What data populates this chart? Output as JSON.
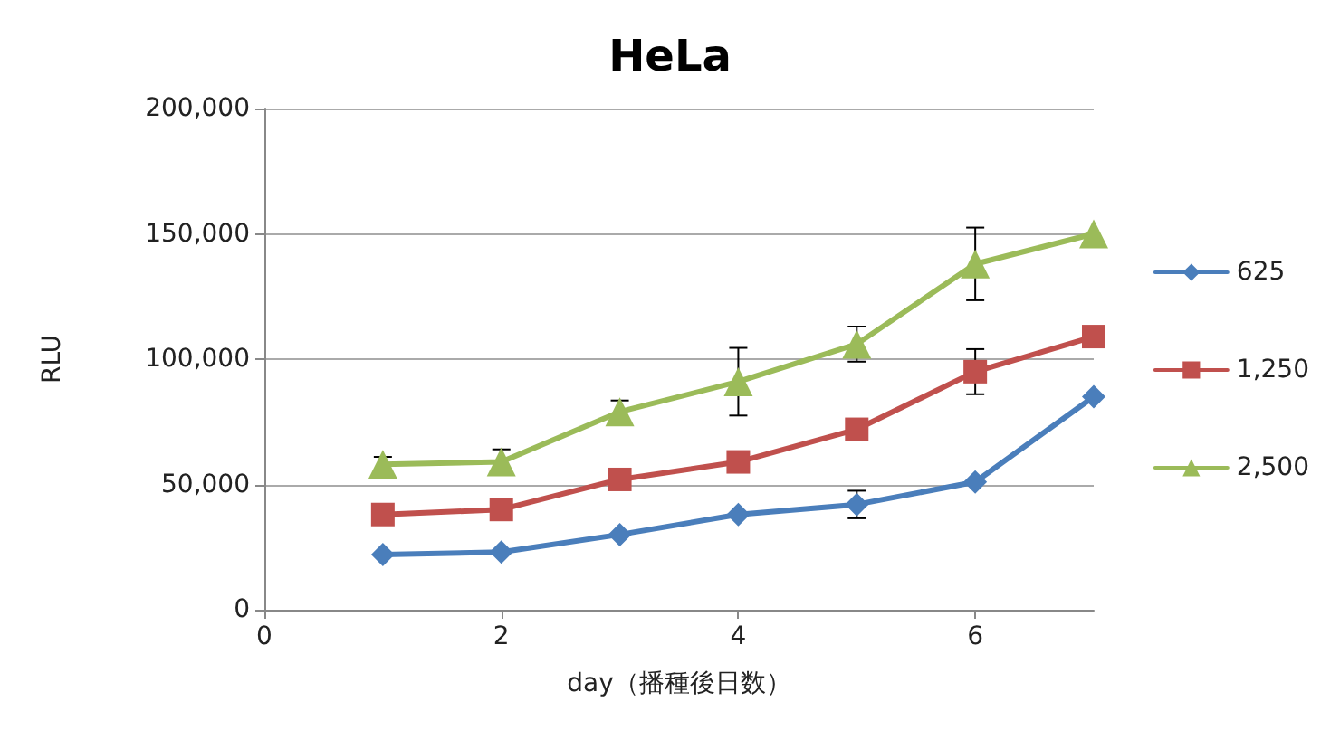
{
  "chart_data": {
    "type": "line",
    "title": "HeLa",
    "xlabel": "day（播種後日数）",
    "ylabel": "RLU",
    "x": [
      1,
      2,
      3,
      4,
      5,
      6,
      7
    ],
    "xlim": [
      0,
      7
    ],
    "xticks": [
      0,
      2,
      4,
      6
    ],
    "ylim": [
      0,
      200000
    ],
    "yticks": [
      {
        "value": 0,
        "label": "0"
      },
      {
        "value": 50000,
        "label": "50,000"
      },
      {
        "value": 100000,
        "label": "100,000"
      },
      {
        "value": 150000,
        "label": "150,000"
      },
      {
        "value": 200000,
        "label": "200,000"
      }
    ],
    "grid": "y",
    "legend": "right",
    "line_style": "solid",
    "series": [
      {
        "name": "625",
        "color": "#4a7ebb",
        "marker": "diamond",
        "values": [
          22000,
          23000,
          30000,
          38000,
          42000,
          51000,
          85000
        ],
        "errors": [
          null,
          null,
          null,
          null,
          5500,
          null,
          null
        ]
      },
      {
        "name": "1,250",
        "color": "#c0504d",
        "marker": "square",
        "values": [
          38000,
          40000,
          52000,
          59000,
          72000,
          95000,
          109000
        ],
        "errors": [
          null,
          null,
          null,
          null,
          null,
          9000,
          null
        ]
      },
      {
        "name": "2,500",
        "color": "#9bbb59",
        "marker": "triangle",
        "values": [
          58000,
          59000,
          79000,
          91000,
          106000,
          138000,
          150000
        ],
        "errors": [
          3000,
          5000,
          4500,
          13500,
          7000,
          14500,
          null
        ]
      }
    ]
  }
}
